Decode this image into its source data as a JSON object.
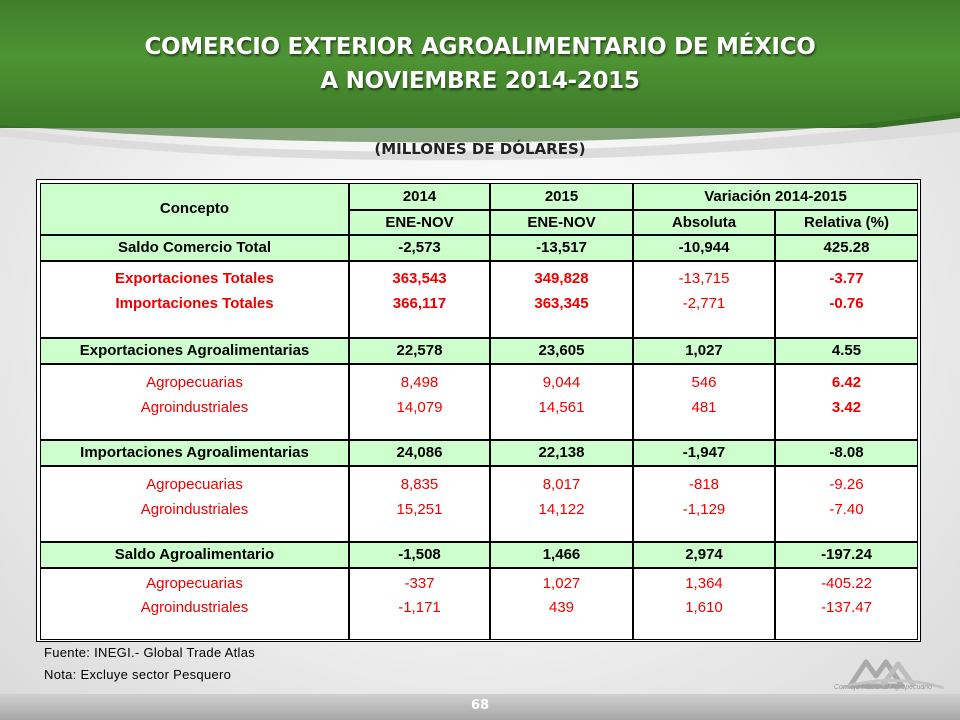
{
  "title_line1": "COMERCIO EXTERIOR AGROALIMENTARIO DE MÉXICO",
  "title_line2": "A NOVIEMBRE 2014-2015",
  "subtitle": "(MILLONES DE DÓLARES)",
  "colors": {
    "header_green": "#4e9334",
    "cell_green": "#ccffcc",
    "accent_red": "#ee0000"
  },
  "table": {
    "headers": {
      "concepto": "Concepto",
      "y2014": "2014",
      "y2015": "2015",
      "variacion": "Variación 2014-2015",
      "sub2014": "ENE-NOV",
      "sub2015": "ENE-NOV",
      "absoluta": "Absoluta",
      "relativa": "Relativa (%)"
    },
    "saldo_total": {
      "label": "Saldo Comercio Total",
      "v2014": "-2,573",
      "v2015": "-13,517",
      "abs": "-10,944",
      "rel": "425.28"
    },
    "totales": {
      "export": {
        "label": "Exportaciones  Totales",
        "v2014": "363,543",
        "v2015": "349,828",
        "abs": "-13,715",
        "rel": "-3.77"
      },
      "import": {
        "label": "Importaciones Totales",
        "v2014": "366,117",
        "v2015": "363,345",
        "abs": "-2,771",
        "rel": "-0.76"
      }
    },
    "export_agro": {
      "label": "Exportaciones Agroalimentarias",
      "v2014": "22,578",
      "v2015": "23,605",
      "abs": "1,027",
      "rel": "4.55"
    },
    "export_detail": {
      "agrop": {
        "label": "Agropecuarias",
        "v2014": "8,498",
        "v2015": "9,044",
        "abs": "546",
        "rel": "6.42"
      },
      "agroind": {
        "label": "Agroindustriales",
        "v2014": "14,079",
        "v2015": "14,561",
        "abs": "481",
        "rel": "3.42"
      }
    },
    "import_agro": {
      "label": "Importaciones Agroalimentarias",
      "v2014": "24,086",
      "v2015": "22,138",
      "abs": "-1,947",
      "rel": "-8.08"
    },
    "import_detail": {
      "agrop": {
        "label": "Agropecuarias",
        "v2014": "8,835",
        "v2015": "8,017",
        "abs": "-818",
        "rel": "-9.26"
      },
      "agroind": {
        "label": "Agroindustriales",
        "v2014": "15,251",
        "v2015": "14,122",
        "abs": "-1,129",
        "rel": "-7.40"
      }
    },
    "saldo_agro": {
      "label": "Saldo Agroalimentario",
      "v2014": "-1,508",
      "v2015": "1,466",
      "abs": "2,974",
      "rel": "-197.24"
    },
    "saldo_detail": {
      "agrop": {
        "label": "Agropecuarias",
        "v2014": "-337",
        "v2015": "1,027",
        "abs": "1,364",
        "rel": "-405.22"
      },
      "agroind": {
        "label": "Agroindustriales",
        "v2014": "-1,171",
        "v2015": "439",
        "abs": "1,610",
        "rel": "-137.47"
      }
    }
  },
  "footnotes": {
    "fuente": "Fuente: INEGI.- Global Trade Atlas",
    "nota": "Nota: Excluye sector Pesquero"
  },
  "logo_text": "Consejo Nacional Agropecuario",
  "page_number": "68"
}
